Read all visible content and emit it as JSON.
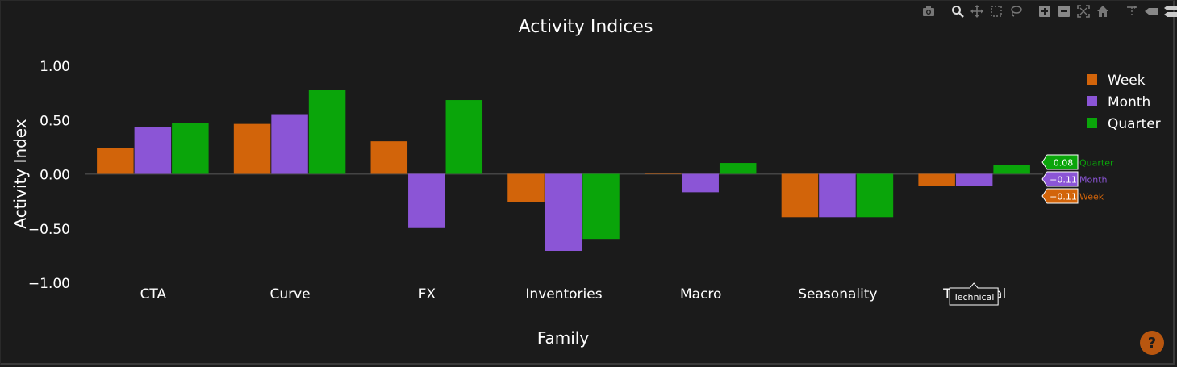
{
  "chart_data": {
    "type": "bar",
    "title": "Activity Indices",
    "xlabel": "Family",
    "ylabel": "Activity Index",
    "categories": [
      "CTA",
      "Curve",
      "FX",
      "Inventories",
      "Macro",
      "Seasonality",
      "Technical"
    ],
    "ylim": [
      -1.0,
      1.0
    ],
    "yticks": [
      1.0,
      0.5,
      0.0,
      -0.5,
      -1.0
    ],
    "ytick_labels": [
      "1.00",
      "0.50",
      "0.00",
      "−0.50",
      "−1.00"
    ],
    "series": [
      {
        "name": "Week",
        "color": "#d2640a",
        "values": [
          0.24,
          0.46,
          0.3,
          -0.26,
          0.01,
          -0.4,
          -0.11
        ]
      },
      {
        "name": "Month",
        "color": "#8b55d6",
        "values": [
          0.43,
          0.55,
          -0.5,
          -0.71,
          -0.17,
          -0.4,
          -0.11
        ]
      },
      {
        "name": "Quarter",
        "color": "#0aa50a",
        "values": [
          0.47,
          0.77,
          0.68,
          -0.6,
          0.1,
          -0.4,
          0.08
        ]
      }
    ],
    "legend_position": "top-right",
    "grid": false,
    "hover": {
      "category": "Technical",
      "labels": [
        {
          "series": "Quarter",
          "value": "0.08"
        },
        {
          "series": "Month",
          "value": "−0.11"
        },
        {
          "series": "Week",
          "value": "−0.11"
        }
      ]
    }
  },
  "modebar": {
    "buttons": [
      "camera-icon",
      "zoom-icon",
      "pan-icon",
      "box-select-icon",
      "lasso-icon",
      "zoom-in-icon",
      "zoom-out-icon",
      "autoscale-icon",
      "reset-axes-icon",
      "spike-lines-icon",
      "hover-closest-icon",
      "hover-compare-icon"
    ]
  },
  "help": {
    "label": "?"
  }
}
